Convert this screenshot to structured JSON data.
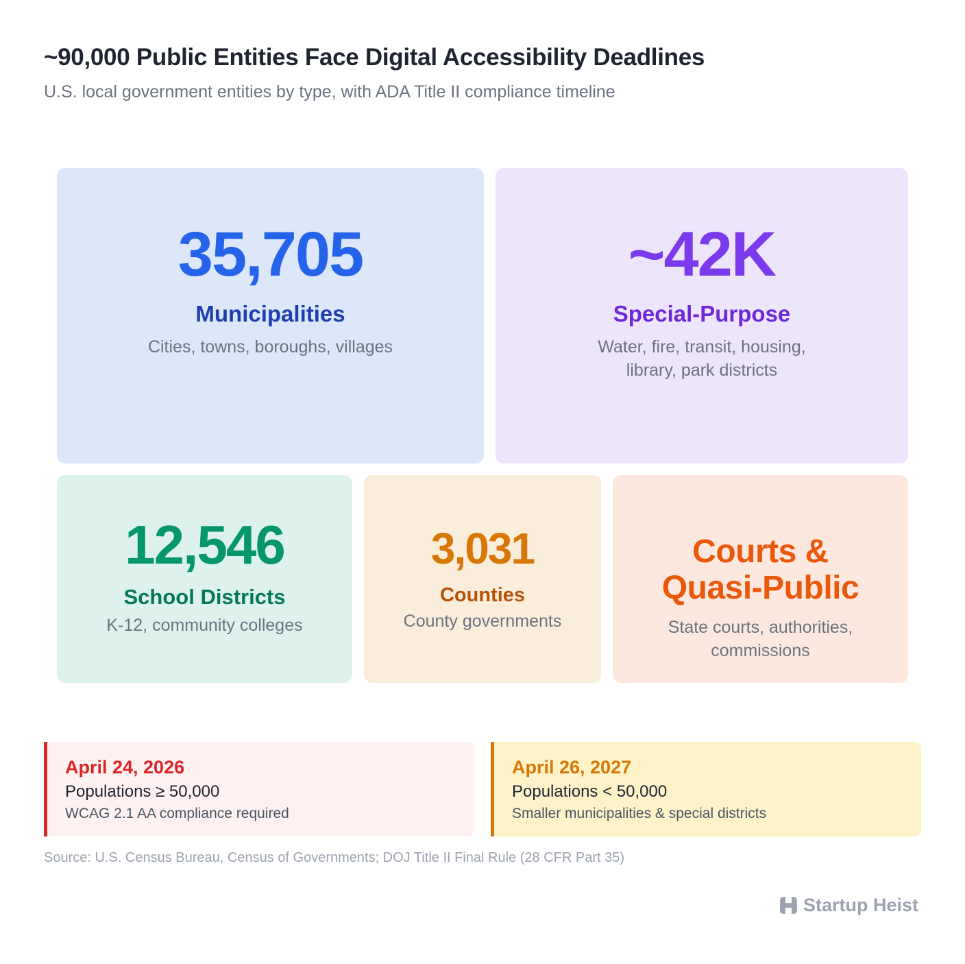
{
  "header": {
    "title": "~90,000 Public Entities Face Digital Accessibility Deadlines",
    "subtitle": "U.S. local government entities by type, with ADA Title II compliance timeline"
  },
  "chart_data": {
    "type": "table",
    "tiles": [
      {
        "value": "35,705",
        "label": "Municipalities",
        "desc_lines": [
          "Cities, towns, boroughs, villages"
        ],
        "color": "#2563eb",
        "bg": "#dde7fa"
      },
      {
        "value": "~42K",
        "label": "Special-Purpose",
        "desc_lines": [
          "Water, fire, transit, housing,",
          "library, park districts"
        ],
        "color": "#7c3aed",
        "bg": "#ede5fc"
      },
      {
        "value": "12,546",
        "label": "School Districts",
        "desc_lines": [
          "K-12, community colleges"
        ],
        "color": "#059669",
        "bg": "#def2ed"
      },
      {
        "value": "3,031",
        "label": "Counties",
        "desc_lines": [
          "County governments"
        ],
        "color": "#d97706",
        "bg": "#faedda"
      },
      {
        "label_lines": [
          "Courts &",
          "Quasi-Public"
        ],
        "desc_lines": [
          "State courts, authorities,",
          "commissions"
        ],
        "color": "#ea580c",
        "bg": "#fce8df"
      }
    ]
  },
  "deadlines": [
    {
      "date": "April 24, 2026",
      "population": "Populations ≥ 50,000",
      "requirement": "WCAG 2.1 AA compliance required",
      "color": "#dc2626"
    },
    {
      "date": "April 26, 2027",
      "population": "Populations < 50,000",
      "requirement": "Smaller municipalities & special districts",
      "color": "#d97706"
    }
  ],
  "footer": {
    "source": "Source: U.S. Census Bureau, Census of Governments; DOJ Title II Final Rule (28 CFR Part 35)",
    "brand": "Startup Heist",
    "brand_icon": "building-icon"
  }
}
